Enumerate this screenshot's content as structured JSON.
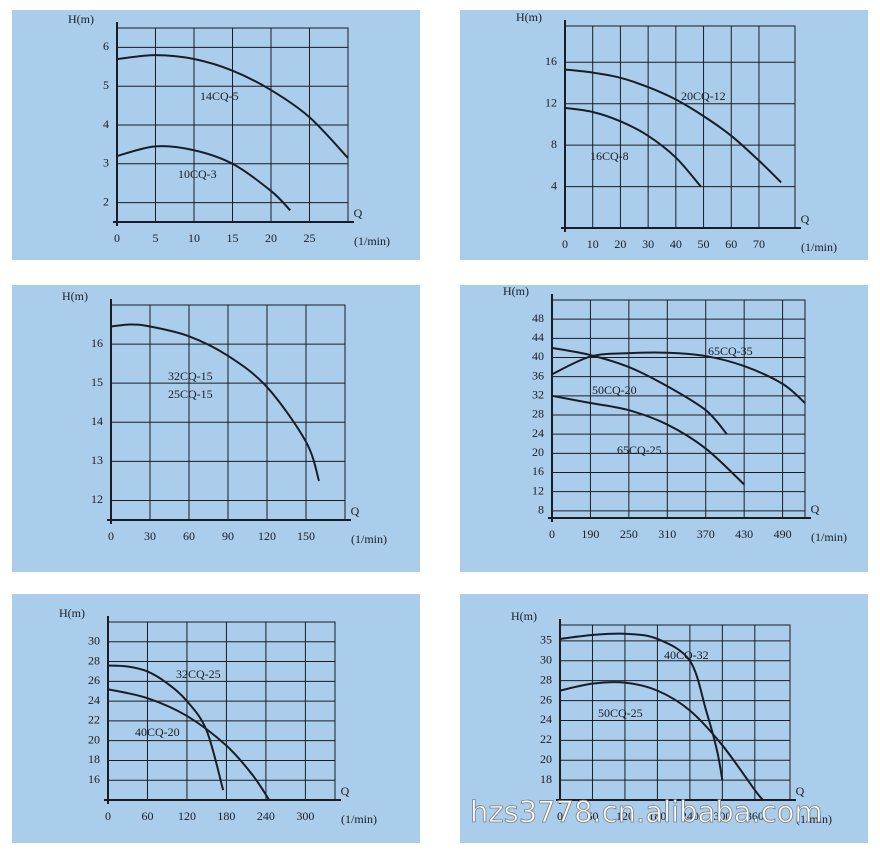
{
  "chart_data": [
    {
      "type": "line",
      "ylabel": "H(m)",
      "xlabel": "Q",
      "xunit": "(1/min)",
      "grid": true,
      "xlim": [
        0,
        30
      ],
      "ylim": [
        1.5,
        6.5
      ],
      "xticks": [
        0,
        5,
        10,
        15,
        20,
        25
      ],
      "yticks": [
        2,
        3,
        4,
        5,
        6
      ],
      "series": [
        {
          "name": "14CQ-5",
          "color": "#1b1d26",
          "x": [
            0,
            5,
            10,
            15,
            20,
            25,
            30
          ],
          "values": [
            5.7,
            5.8,
            5.7,
            5.4,
            4.9,
            4.2,
            3.15
          ]
        },
        {
          "name": "10CQ-3",
          "color": "#1b1d26",
          "x": [
            0,
            5,
            10,
            15,
            20,
            22.5
          ],
          "values": [
            3.2,
            3.45,
            3.35,
            3.0,
            2.3,
            1.8
          ]
        }
      ]
    },
    {
      "type": "line",
      "ylabel": "H(m)",
      "xlabel": "Q",
      "xunit": "(1/min)",
      "grid": true,
      "xlim": [
        0,
        83
      ],
      "ylim": [
        0,
        19.5
      ],
      "xticks": [
        0,
        10,
        20,
        30,
        40,
        50,
        60,
        70
      ],
      "yticks": [
        4,
        8,
        12,
        16
      ],
      "series": [
        {
          "name": "20CQ-12",
          "color": "#1b1d26",
          "x": [
            0,
            10,
            20,
            30,
            40,
            50,
            60,
            70,
            78
          ],
          "values": [
            15.3,
            15,
            14.5,
            13.6,
            12.4,
            10.8,
            8.9,
            6.5,
            4.4
          ]
        },
        {
          "name": "16CQ-8",
          "color": "#1b1d26",
          "x": [
            0,
            10,
            20,
            30,
            40,
            49
          ],
          "values": [
            11.6,
            11.2,
            10.3,
            8.9,
            6.8,
            4
          ]
        }
      ]
    },
    {
      "type": "line",
      "ylabel": "H(m)",
      "xlabel": "Q",
      "xunit": "(1/min)",
      "grid": true,
      "xlim": [
        0,
        180
      ],
      "ylim": [
        11.5,
        17
      ],
      "xticks": [
        0,
        30,
        60,
        90,
        120,
        150
      ],
      "yticks": [
        12,
        13,
        14,
        15,
        16
      ],
      "series": [
        {
          "names": [
            "32CQ-15",
            "25CQ-15"
          ],
          "color": "#1b1d26",
          "x": [
            0,
            15,
            30,
            60,
            90,
            120,
            150,
            160
          ],
          "values": [
            16.45,
            16.5,
            16.45,
            16.2,
            15.7,
            14.9,
            13.5,
            12.5
          ]
        }
      ]
    },
    {
      "type": "line",
      "ylabel": "H(m)",
      "xlabel": "Q",
      "xunit": "(1/min)",
      "grid": true,
      "xlim": [
        0,
        525
      ],
      "ylim": [
        6.5,
        52
      ],
      "xticks": [
        0,
        190,
        250,
        310,
        370,
        430,
        490
      ],
      "yticks": [
        8,
        12,
        16,
        20,
        24,
        28,
        32,
        36,
        40,
        44,
        48
      ],
      "series": [
        {
          "name": "65CQ-35",
          "color": "#1b1d26",
          "x": [
            0,
            190,
            250,
            310,
            370,
            430,
            490,
            525
          ],
          "values": [
            36.5,
            40.2,
            40.9,
            41,
            40.3,
            38.2,
            34.5,
            30.5
          ]
        },
        {
          "name": "50CQ-20",
          "color": "#1b1d26",
          "x": [
            0,
            190,
            250,
            310,
            370,
            403
          ],
          "values": [
            42,
            40.5,
            38,
            34,
            29,
            24
          ]
        },
        {
          "name": "65CQ-25",
          "color": "#1b1d26",
          "x": [
            0,
            190,
            250,
            310,
            370,
            430
          ],
          "values": [
            32,
            30.5,
            29,
            26,
            21,
            13.5
          ]
        }
      ]
    },
    {
      "type": "line",
      "ylabel": "H(m)",
      "xlabel": "Q",
      "xunit": "(1/min)",
      "grid": true,
      "xlim": [
        0,
        345
      ],
      "ylim": [
        14,
        32
      ],
      "xticks": [
        0,
        60,
        120,
        180,
        240,
        300
      ],
      "yticks": [
        16,
        18,
        20,
        22,
        24,
        26,
        28,
        30
      ],
      "series": [
        {
          "name": "32CQ-25",
          "color": "#1b1d26",
          "x": [
            0,
            30,
            60,
            90,
            120,
            150,
            175
          ],
          "values": [
            27.6,
            27.5,
            27,
            25.8,
            24,
            21,
            15
          ]
        },
        {
          "name": "40CQ-20",
          "color": "#1b1d26",
          "x": [
            0,
            60,
            120,
            180,
            220,
            245
          ],
          "values": [
            25.2,
            24.3,
            22.5,
            19.5,
            16.5,
            14
          ]
        }
      ]
    },
    {
      "type": "line",
      "ylabel": "H(m)",
      "xlabel": "Q",
      "xunit": "(1/min)",
      "grid": true,
      "xlim": [
        0,
        425
      ],
      "ylim": [
        16,
        39
      ],
      "xticks": [
        0,
        60,
        120,
        180,
        240,
        300,
        360
      ],
      "yticks": [
        18,
        20,
        22,
        24,
        26,
        28,
        30,
        35
      ],
      "series": [
        {
          "name": "40CQ-32",
          "color": "#1b1d26",
          "x": [
            0,
            60,
            120,
            180,
            240,
            270,
            290,
            300
          ],
          "values": [
            35.5,
            36.5,
            36.8,
            35.5,
            30,
            25,
            21,
            18
          ]
        },
        {
          "name": "50CQ-25",
          "color": "#1b1d26",
          "x": [
            0,
            60,
            120,
            180,
            240,
            300,
            360,
            375
          ],
          "values": [
            27,
            27.7,
            27.8,
            27,
            25,
            21.5,
            17,
            16
          ]
        }
      ]
    }
  ],
  "watermark": "hzs3778.cn.alibaba.com"
}
